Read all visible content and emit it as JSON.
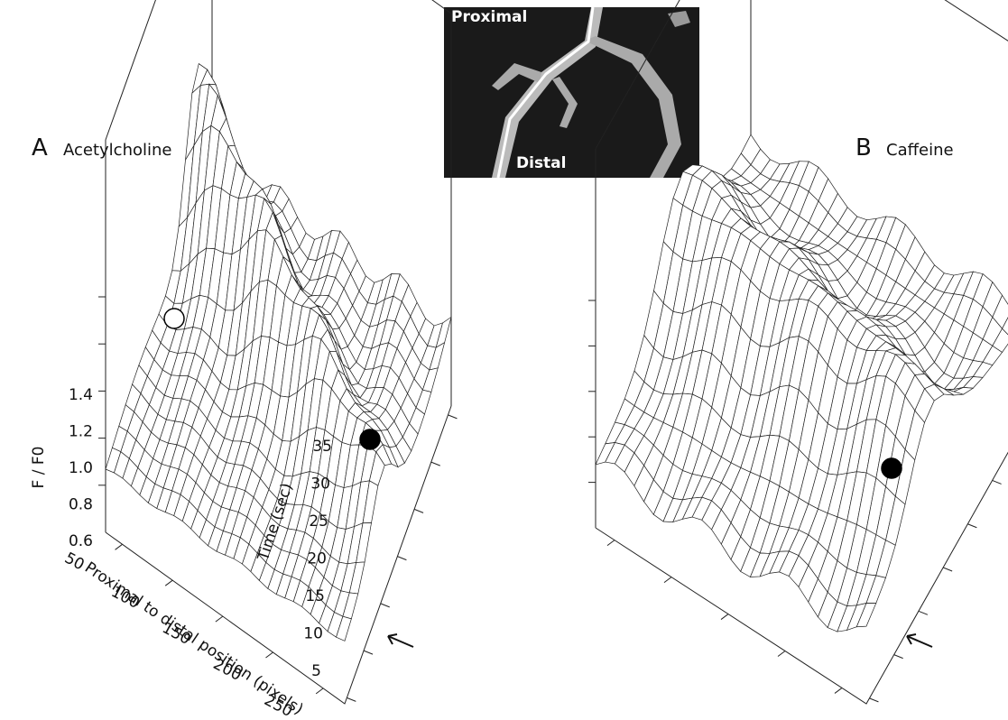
{
  "inset": {
    "labels": [
      "Proximal",
      "Distal"
    ]
  },
  "panels": [
    {
      "letter": "A",
      "title": "Acetylcholine",
      "z_label": "F / F0",
      "z_ticks": [
        "1.4",
        "1.2",
        "1.0",
        "0.8",
        "0.6"
      ],
      "x_label": "Proximal to distal position (pixels)",
      "x_ticks": [
        "50",
        "100",
        "150",
        "200",
        "250"
      ],
      "y_label": "Time (sec)",
      "y_ticks": [
        "35",
        "30",
        "25",
        "20",
        "15",
        "10",
        "5"
      ]
    },
    {
      "letter": "B",
      "title": "Caffeine"
    }
  ]
}
